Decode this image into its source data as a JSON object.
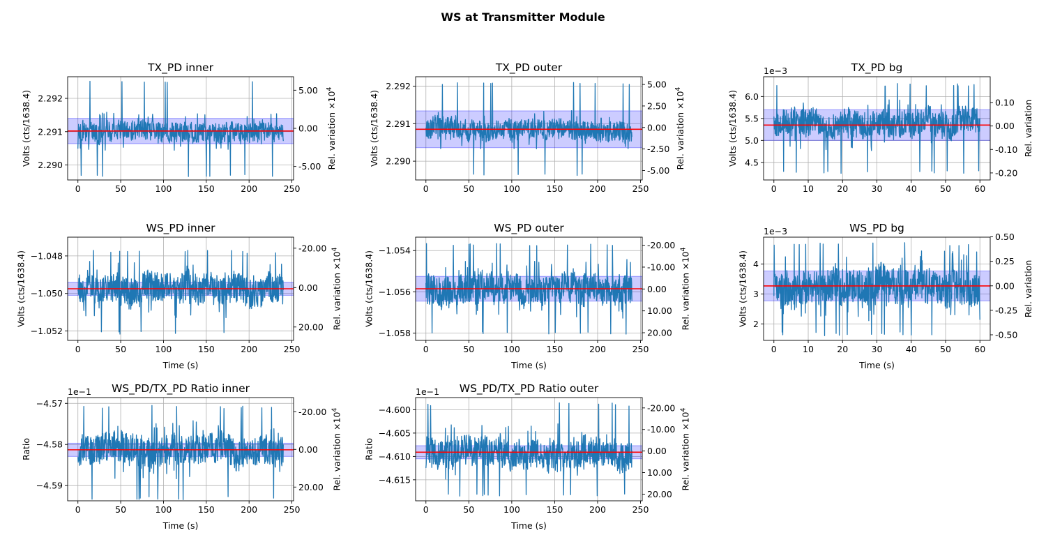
{
  "figure": {
    "title": "WS at Transmitter Module"
  },
  "colors": {
    "trace": "#1f77b4",
    "mean": "#ff0000",
    "band": "#0000ff",
    "grid": "#b0b0b0",
    "axis": "#000000"
  },
  "chart_data": [
    {
      "type": "line",
      "title": "TX_PD inner",
      "xlabel": "",
      "ylabel": "Volts (cts/1638.4)",
      "y2label": "Rel. variation ×10^4",
      "xlim": [
        -12,
        252
      ],
      "ylim": [
        2.28955,
        2.29265
      ],
      "y2lim": [
        -6.77,
        6.77
      ],
      "y2_inverted": false,
      "xticks": [
        "0",
        "50",
        "100",
        "150",
        "200",
        "250"
      ],
      "yticks": [
        {
          "v": 2.29,
          "label": "2.290"
        },
        {
          "v": 2.291,
          "label": "2.291"
        },
        {
          "v": 2.292,
          "label": "2.292"
        }
      ],
      "y2ticks": [
        {
          "v": -5,
          "label": "-5.00"
        },
        {
          "v": 0,
          "label": "0.00"
        },
        {
          "v": 5,
          "label": "5.00"
        }
      ],
      "offset_label": "",
      "series": [
        {
          "x_range": [
            0,
            240
          ],
          "mean": 2.29102,
          "band_halfwidth": 0.00038,
          "typical_spread": 0.00045,
          "min": 2.28965,
          "max": 2.29253
        }
      ]
    },
    {
      "type": "line",
      "title": "TX_PD outer",
      "xlabel": "",
      "ylabel": "Volts (cts/1638.4)",
      "y2label": "Rel. variation ×10^4",
      "xlim": [
        -12,
        252
      ],
      "ylim": [
        2.2895,
        2.29225
      ],
      "y2lim": [
        -6.1,
        5.9
      ],
      "y2_inverted": false,
      "xticks": [
        "0",
        "50",
        "100",
        "150",
        "200",
        "250"
      ],
      "yticks": [
        {
          "v": 2.29,
          "label": "2.290"
        },
        {
          "v": 2.291,
          "label": "2.291"
        },
        {
          "v": 2.292,
          "label": "2.292"
        }
      ],
      "y2ticks": [
        {
          "v": -5,
          "label": "-5.00"
        },
        {
          "v": -2.5,
          "label": "-2.50"
        },
        {
          "v": 0,
          "label": "0.00"
        },
        {
          "v": 2.5,
          "label": "2.50"
        },
        {
          "v": 5,
          "label": "5.00"
        }
      ],
      "offset_label": "",
      "series": [
        {
          "x_range": [
            0,
            240
          ],
          "mean": 2.29085,
          "band_halfwidth": 0.00049,
          "typical_spread": 0.0004,
          "min": 2.2896,
          "max": 2.2921
        }
      ]
    },
    {
      "type": "line",
      "title": "TX_PD bg",
      "xlabel": "",
      "ylabel": "Volts (cts/1638.4)",
      "y2label": "Rel. variation",
      "xlim": [
        -3,
        63
      ],
      "ylim": [
        4.1,
        6.45
      ],
      "y2lim": [
        -0.23,
        0.21
      ],
      "y2_inverted": false,
      "xticks": [
        "0",
        "10",
        "20",
        "30",
        "40",
        "50",
        "60"
      ],
      "yticks": [
        {
          "v": 4.5,
          "label": "4.5"
        },
        {
          "v": 5.0,
          "label": "5.0"
        },
        {
          "v": 5.5,
          "label": "5.5"
        },
        {
          "v": 6.0,
          "label": "6.0"
        }
      ],
      "y2ticks": [
        {
          "v": -0.2,
          "label": "-0.20"
        },
        {
          "v": -0.1,
          "label": "-0.10"
        },
        {
          "v": 0,
          "label": "0.00"
        },
        {
          "v": 0.1,
          "label": "0.10"
        }
      ],
      "offset_label": "1e−3",
      "series": [
        {
          "x_range": [
            0,
            60
          ],
          "mean": 5.35,
          "band_halfwidth": 0.35,
          "typical_spread": 0.45,
          "min": 4.25,
          "max": 6.3
        }
      ]
    },
    {
      "type": "line",
      "title": "WS_PD inner",
      "xlabel": "Time (s)",
      "ylabel": "Volts (cts/1638.4)",
      "y2label": "Rel. variation ×10^4",
      "xlim": [
        -12,
        252
      ],
      "ylim": [
        -1.0525,
        -1.047
      ],
      "y2lim": [
        26.8,
        -25.6
      ],
      "y2_inverted": true,
      "xticks": [
        "0",
        "50",
        "100",
        "150",
        "200",
        "250"
      ],
      "yticks": [
        {
          "v": -1.052,
          "label": "−1.052"
        },
        {
          "v": -1.05,
          "label": "−1.050"
        },
        {
          "v": -1.048,
          "label": "−1.048"
        }
      ],
      "y2ticks": [
        {
          "v": 20,
          "label": "20.00"
        },
        {
          "v": 0,
          "label": "0.00"
        },
        {
          "v": -20,
          "label": "-20.00"
        }
      ],
      "offset_label": "",
      "series": [
        {
          "x_range": [
            0,
            240
          ],
          "mean": -1.04975,
          "band_halfwidth": 0.00035,
          "typical_spread": 0.0012,
          "min": -1.0522,
          "max": -1.0477
        }
      ]
    },
    {
      "type": "line",
      "title": "WS_PD outer",
      "xlabel": "Time (s)",
      "ylabel": "Volts (cts/1638.4)",
      "y2label": "Rel. variation ×10^4",
      "xlim": [
        -12,
        252
      ],
      "ylim": [
        -1.05835,
        -1.05335
      ],
      "y2lim": [
        23.5,
        -23.7
      ],
      "y2_inverted": true,
      "xticks": [
        "0",
        "50",
        "100",
        "150",
        "200",
        "250"
      ],
      "yticks": [
        {
          "v": -1.058,
          "label": "−1.058"
        },
        {
          "v": -1.056,
          "label": "−1.056"
        },
        {
          "v": -1.054,
          "label": "−1.054"
        }
      ],
      "y2ticks": [
        {
          "v": 20,
          "label": "20.00"
        },
        {
          "v": 10,
          "label": "10.00"
        },
        {
          "v": 0,
          "label": "0.00"
        },
        {
          "v": -10,
          "label": "-10.00"
        },
        {
          "v": -20,
          "label": "-20.00"
        }
      ],
      "offset_label": "",
      "series": [
        {
          "x_range": [
            0,
            240
          ],
          "mean": -1.05585,
          "band_halfwidth": 0.0006,
          "typical_spread": 0.0011,
          "min": -1.0581,
          "max": -1.0536
        }
      ]
    },
    {
      "type": "line",
      "title": "WS_PD bg",
      "xlabel": "Time (s)",
      "ylabel": "Volts (cts/1638.4)",
      "y2label": "Rel. variation",
      "xlim": [
        -3,
        63
      ],
      "ylim": [
        1.45,
        4.9
      ],
      "y2lim": [
        -0.557,
        0.497
      ],
      "y2_inverted": false,
      "xticks": [
        "0",
        "10",
        "20",
        "30",
        "40",
        "50",
        "60"
      ],
      "yticks": [
        {
          "v": 2,
          "label": "2"
        },
        {
          "v": 3,
          "label": "3"
        },
        {
          "v": 4,
          "label": "4"
        }
      ],
      "y2ticks": [
        {
          "v": -0.5,
          "label": "-0.50"
        },
        {
          "v": -0.25,
          "label": "-0.25"
        },
        {
          "v": 0,
          "label": "0.00"
        },
        {
          "v": 0.25,
          "label": "0.25"
        },
        {
          "v": 0.5,
          "label": "0.50"
        }
      ],
      "offset_label": "1e−3",
      "series": [
        {
          "x_range": [
            0,
            60
          ],
          "mean": 3.27,
          "band_halfwidth": 0.5,
          "typical_spread": 0.9,
          "min": 1.6,
          "max": 4.75
        }
      ]
    },
    {
      "type": "line",
      "title": "WS_PD/TX_PD Ratio inner",
      "xlabel": "Time (s)",
      "ylabel": "Ratio",
      "y2label": "Rel. variation ×10^4",
      "xlim": [
        -12,
        252
      ],
      "ylim": [
        -4.5937,
        -4.5686
      ],
      "y2lim": [
        27.3,
        -27.5
      ],
      "y2_inverted": true,
      "xticks": [
        "0",
        "50",
        "100",
        "150",
        "200",
        "250"
      ],
      "yticks": [
        {
          "v": -4.59,
          "label": "−4.59"
        },
        {
          "v": -4.58,
          "label": "−4.58"
        },
        {
          "v": -4.57,
          "label": "−4.57"
        }
      ],
      "y2ticks": [
        {
          "v": 20,
          "label": "20.00"
        },
        {
          "v": 0,
          "label": "0.00"
        },
        {
          "v": -20,
          "label": "-20.00"
        }
      ],
      "offset_label": "1e−1",
      "series": [
        {
          "x_range": [
            0,
            240
          ],
          "mean": -4.5813,
          "band_halfwidth": 0.0016,
          "typical_spread": 0.0055,
          "min": -4.5935,
          "max": -4.5705
        }
      ]
    },
    {
      "type": "line",
      "title": "WS_PD/TX_PD Ratio outer",
      "xlabel": "Time (s)",
      "ylabel": "Ratio",
      "y2label": "Rel. variation ×10^4",
      "xlim": [
        -12,
        252
      ],
      "ylim": [
        -4.6195,
        -4.5974
      ],
      "y2lim": [
        23.1,
        -24.8
      ],
      "y2_inverted": true,
      "xticks": [
        "0",
        "50",
        "100",
        "150",
        "200",
        "250"
      ],
      "yticks": [
        {
          "v": -4.615,
          "label": "−4.615"
        },
        {
          "v": -4.61,
          "label": "−4.610"
        },
        {
          "v": -4.605,
          "label": "−4.605"
        },
        {
          "v": -4.6,
          "label": "−4.600"
        }
      ],
      "y2ticks": [
        {
          "v": 20,
          "label": "20.00"
        },
        {
          "v": 10,
          "label": "10.00"
        },
        {
          "v": 0,
          "label": "0.00"
        },
        {
          "v": -10,
          "label": "-10.00"
        },
        {
          "v": -20,
          "label": "-20.00"
        }
      ],
      "offset_label": "1e−1",
      "series": [
        {
          "x_range": [
            0,
            240
          ],
          "mean": -4.6091,
          "band_halfwidth": 0.0014,
          "typical_spread": 0.0048,
          "min": -4.6185,
          "max": -4.5985
        }
      ]
    }
  ]
}
